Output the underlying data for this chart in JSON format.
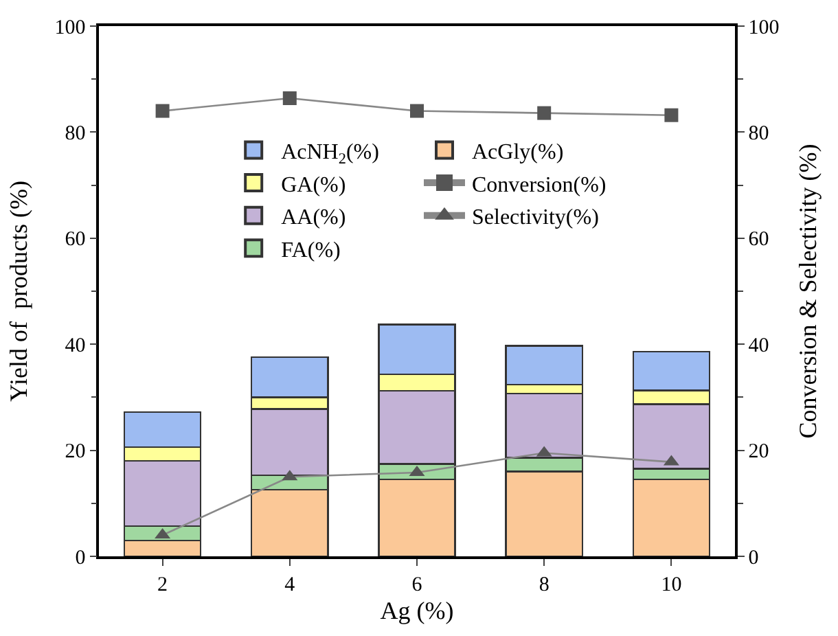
{
  "chart_data": {
    "type": "bar",
    "stacked": true,
    "xlabel": "Ag (%)",
    "ylabel": "Yield of  products (%)",
    "y2label": "Conversion & Selectivity (%)",
    "categories": [
      "2",
      "4",
      "6",
      "8",
      "10"
    ],
    "series": [
      {
        "name": "AcGly(%)",
        "color": "#fbc897",
        "values": [
          3.0,
          12.6,
          14.5,
          16.0,
          14.5
        ]
      },
      {
        "name": "FA(%)",
        "color": "#a0d8a0",
        "values": [
          2.7,
          2.7,
          2.9,
          2.6,
          2.0
        ]
      },
      {
        "name": "AA(%)",
        "color": "#c3b2d6",
        "values": [
          12.3,
          12.5,
          13.8,
          12.1,
          12.2
        ]
      },
      {
        "name": "GA(%)",
        "color": "#ffff99",
        "values": [
          2.6,
          2.2,
          3.1,
          1.7,
          2.6
        ]
      },
      {
        "name": "AcNH$_{2}$(%)",
        "color": "#9dbbf2",
        "values": [
          6.6,
          7.6,
          9.4,
          7.3,
          7.3
        ]
      },
      {
        "name": "Conversion(%)",
        "type": "line",
        "axis": "y2",
        "marker": "square",
        "color": "#555555",
        "values": [
          84.0,
          86.4,
          84.0,
          83.6,
          83.2
        ]
      },
      {
        "name": "Selectivity(%)",
        "type": "line",
        "axis": "y2",
        "marker": "triangle",
        "color": "#555555",
        "values": [
          4.0,
          15.0,
          15.8,
          19.5,
          17.8
        ]
      }
    ],
    "ylim": [
      0,
      100
    ],
    "yticks": [
      0,
      20,
      40,
      60,
      80,
      100
    ],
    "y2lim": [
      0,
      100
    ],
    "y2ticks": [
      0,
      20,
      40,
      60,
      80,
      100
    ],
    "legend": "top"
  }
}
